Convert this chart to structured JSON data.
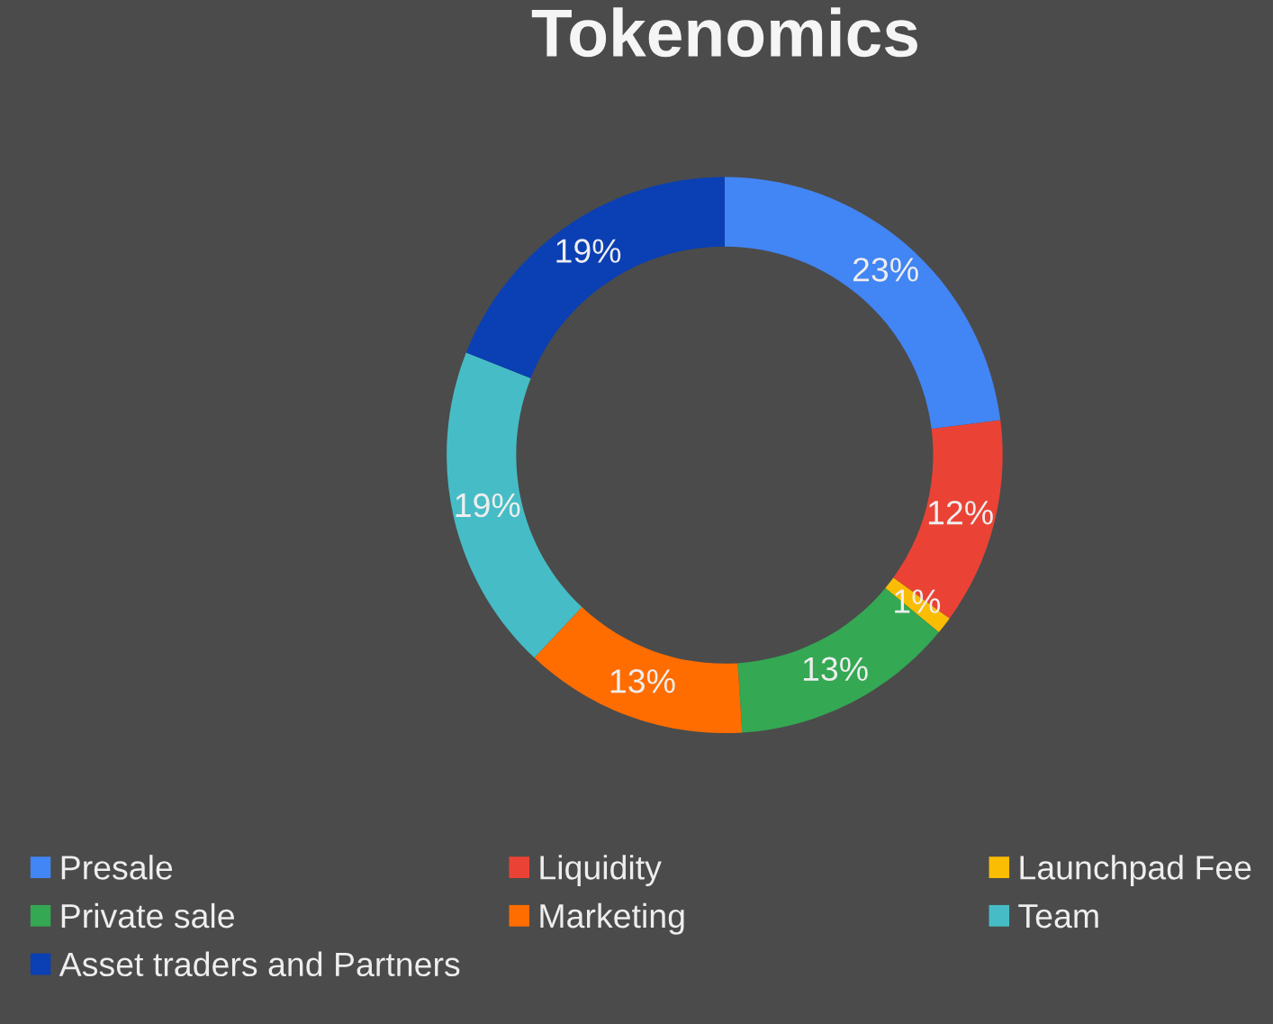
{
  "chart_data": {
    "type": "donut",
    "title": "Tokenomics",
    "categories": [
      "Presale",
      "Liquidity",
      "Launchpad Fee",
      "Private sale",
      "Marketing",
      "Team",
      "Asset traders and Partners"
    ],
    "values": [
      23,
      12,
      1,
      13,
      13,
      19,
      19
    ],
    "colors": [
      "#4285f4",
      "#ea4335",
      "#fbbc04",
      "#34a853",
      "#ff6d01",
      "#46bdc6",
      "#0b3fb4"
    ],
    "value_labels": [
      "23%",
      "12%",
      "1%",
      "13%",
      "13%",
      "19%",
      "19%"
    ],
    "legend": "bottom"
  }
}
